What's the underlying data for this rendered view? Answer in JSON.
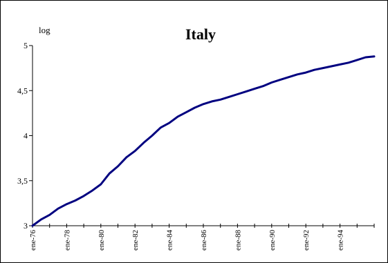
{
  "chart_data": {
    "type": "line",
    "title": "Italy",
    "ylabel": "log",
    "xlabel": "",
    "ylim": [
      3,
      5
    ],
    "y_ticks": [
      3,
      3.5,
      4,
      4.5,
      5
    ],
    "y_tick_labels": [
      "3",
      "3,5",
      "4",
      "4,5",
      "5"
    ],
    "x_range": [
      "1976-01",
      "1996-01"
    ],
    "x_ticks": [
      "1976-01",
      "1978-01",
      "1980-01",
      "1982-01",
      "1984-01",
      "1986-01",
      "1988-01",
      "1990-01",
      "1992-01",
      "1994-01"
    ],
    "x_tick_labels": [
      "ene-76",
      "ene-78",
      "ene-80",
      "ene-82",
      "ene-84",
      "ene-86",
      "ene-88",
      "ene-90",
      "ene-92",
      "ene-94"
    ],
    "grid": false,
    "legend": "none",
    "series": [
      {
        "color": "#000080",
        "points": [
          [
            "1976-01",
            3.0
          ],
          [
            "1976-07",
            3.07
          ],
          [
            "1977-01",
            3.12
          ],
          [
            "1977-07",
            3.19
          ],
          [
            "1978-01",
            3.24
          ],
          [
            "1978-07",
            3.28
          ],
          [
            "1979-01",
            3.33
          ],
          [
            "1979-07",
            3.39
          ],
          [
            "1980-01",
            3.46
          ],
          [
            "1980-07",
            3.58
          ],
          [
            "1981-01",
            3.66
          ],
          [
            "1981-07",
            3.76
          ],
          [
            "1982-01",
            3.83
          ],
          [
            "1982-07",
            3.92
          ],
          [
            "1983-01",
            4.0
          ],
          [
            "1983-07",
            4.09
          ],
          [
            "1984-01",
            4.14
          ],
          [
            "1984-07",
            4.21
          ],
          [
            "1985-01",
            4.26
          ],
          [
            "1985-07",
            4.31
          ],
          [
            "1986-01",
            4.35
          ],
          [
            "1986-07",
            4.38
          ],
          [
            "1987-01",
            4.4
          ],
          [
            "1987-07",
            4.43
          ],
          [
            "1988-01",
            4.46
          ],
          [
            "1988-07",
            4.49
          ],
          [
            "1989-01",
            4.52
          ],
          [
            "1989-07",
            4.55
          ],
          [
            "1990-01",
            4.59
          ],
          [
            "1990-07",
            4.62
          ],
          [
            "1991-01",
            4.65
          ],
          [
            "1991-07",
            4.68
          ],
          [
            "1992-01",
            4.7
          ],
          [
            "1992-07",
            4.73
          ],
          [
            "1993-01",
            4.75
          ],
          [
            "1993-07",
            4.77
          ],
          [
            "1994-01",
            4.79
          ],
          [
            "1994-07",
            4.81
          ],
          [
            "1995-01",
            4.84
          ],
          [
            "1995-07",
            4.87
          ],
          [
            "1996-01",
            4.88
          ]
        ]
      }
    ]
  }
}
